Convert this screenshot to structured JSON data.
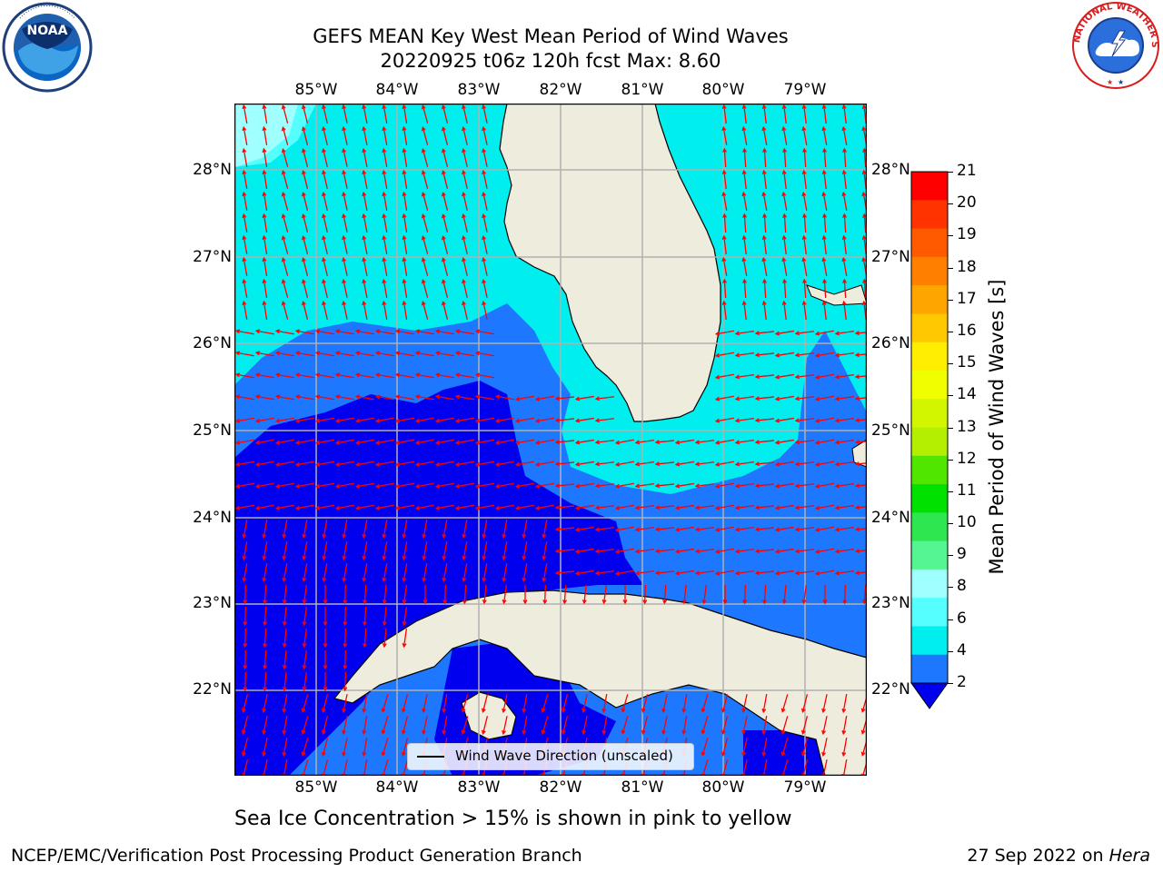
{
  "header": {
    "title_line1": "GEFS MEAN Key West Mean Period of Wind Waves",
    "title_line2": "20220925 t06z 120h fcst   Max: 8.60"
  },
  "logos": {
    "left": {
      "icon": "noaa-logo-icon",
      "text": "NOAA"
    },
    "right": {
      "icon": "nws-logo-icon",
      "text": "NATIONAL WEATHER SERVICE"
    }
  },
  "map": {
    "lon_labels": [
      "85°W",
      "84°W",
      "83°W",
      "82°W",
      "81°W",
      "80°W",
      "79°W"
    ],
    "lat_labels": [
      "28°N",
      "27°N",
      "26°N",
      "25°N",
      "24°N",
      "23°N",
      "22°N"
    ],
    "legend_text": "Wind Wave Direction (unscaled)",
    "colors": {
      "land": "#eeecdc",
      "arrow": "#ff0000",
      "grid": "#b0b0b0",
      "level_lt2": "#0000ee",
      "level_2_4": "#1e78ff",
      "level_4_6": "#00e5ee",
      "level_6_8": "#55ffff",
      "level_8_9": "#a0ffff"
    }
  },
  "colorbar": {
    "label": "Mean Period of Wind Waves [s]",
    "ticks": [
      "21",
      "20",
      "19",
      "18",
      "17",
      "16",
      "15",
      "14",
      "13",
      "12",
      "11",
      "10",
      "9",
      "8",
      "6",
      "4",
      "2"
    ],
    "colors": [
      "#ff0000",
      "#ff3300",
      "#ff5a00",
      "#ff8000",
      "#ffa500",
      "#ffc800",
      "#ffee00",
      "#f0ff00",
      "#d2f500",
      "#b4ee00",
      "#50e600",
      "#00e100",
      "#2de650",
      "#55f591",
      "#a0ffff",
      "#55ffff",
      "#00eeee",
      "#1e78ff"
    ],
    "extend_color": "#0000ee"
  },
  "caption": "Sea Ice Concentration > 15% is shown in pink to yellow",
  "footer": {
    "left": "NCEP/EMC/Verification Post Processing Product Generation Branch",
    "right_prefix": "27 Sep 2022 on ",
    "right_machine": "Hera"
  }
}
